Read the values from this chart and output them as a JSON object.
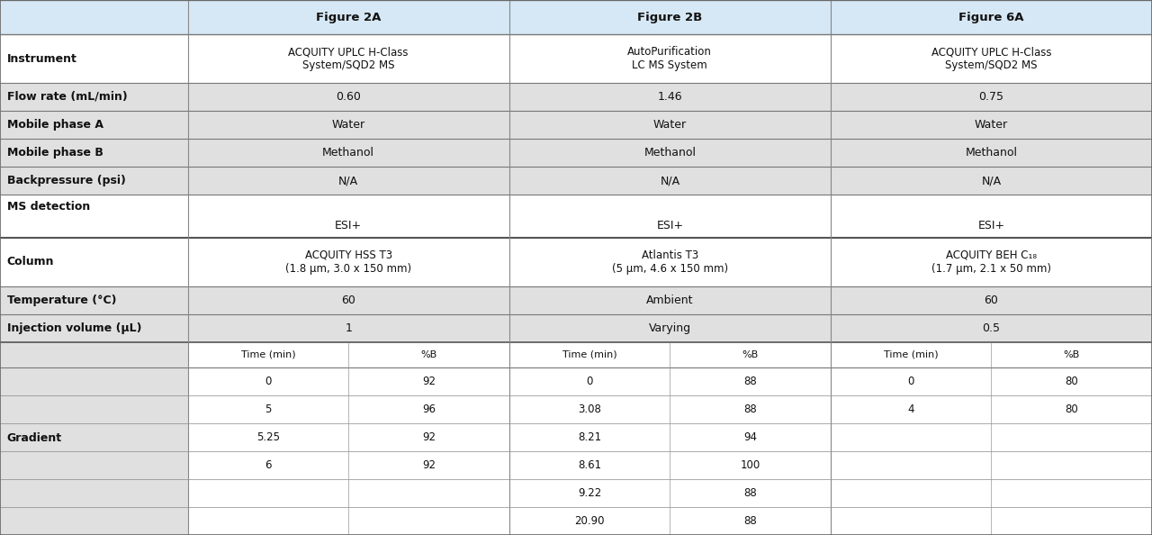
{
  "header_bg": "#d6e8f5",
  "label_col_bg": "#e8e8e8",
  "white_bg": "#ffffff",
  "bold_row_bg": "#e0e0e0",
  "col_headers": [
    "Figure 2A",
    "Figure 2B",
    "Figure 6A"
  ],
  "gradient_rows": [
    {
      "fig2a_time": "0",
      "fig2a_pctb": "92",
      "fig2b_time": "0",
      "fig2b_pctb": "88",
      "fig6a_time": "0",
      "fig6a_pctb": "80"
    },
    {
      "fig2a_time": "5",
      "fig2a_pctb": "96",
      "fig2b_time": "3.08",
      "fig2b_pctb": "88",
      "fig6a_time": "4",
      "fig6a_pctb": "80"
    },
    {
      "fig2a_time": "5.25",
      "fig2a_pctb": "92",
      "fig2b_time": "8.21",
      "fig2b_pctb": "94",
      "fig6a_time": "",
      "fig6a_pctb": ""
    },
    {
      "fig2a_time": "6",
      "fig2a_pctb": "92",
      "fig2b_time": "8.61",
      "fig2b_pctb": "100",
      "fig6a_time": "",
      "fig6a_pctb": ""
    },
    {
      "fig2a_time": "",
      "fig2a_pctb": "",
      "fig2b_time": "9.22",
      "fig2b_pctb": "88",
      "fig6a_time": "",
      "fig6a_pctb": ""
    },
    {
      "fig2a_time": "",
      "fig2a_pctb": "",
      "fig2b_time": "20.90",
      "fig2b_pctb": "88",
      "fig6a_time": "",
      "fig6a_pctb": ""
    }
  ],
  "fontsize_header": 9.5,
  "fontsize_body": 9.0,
  "fontsize_small": 8.5,
  "fontsize_gradient": 8.5
}
